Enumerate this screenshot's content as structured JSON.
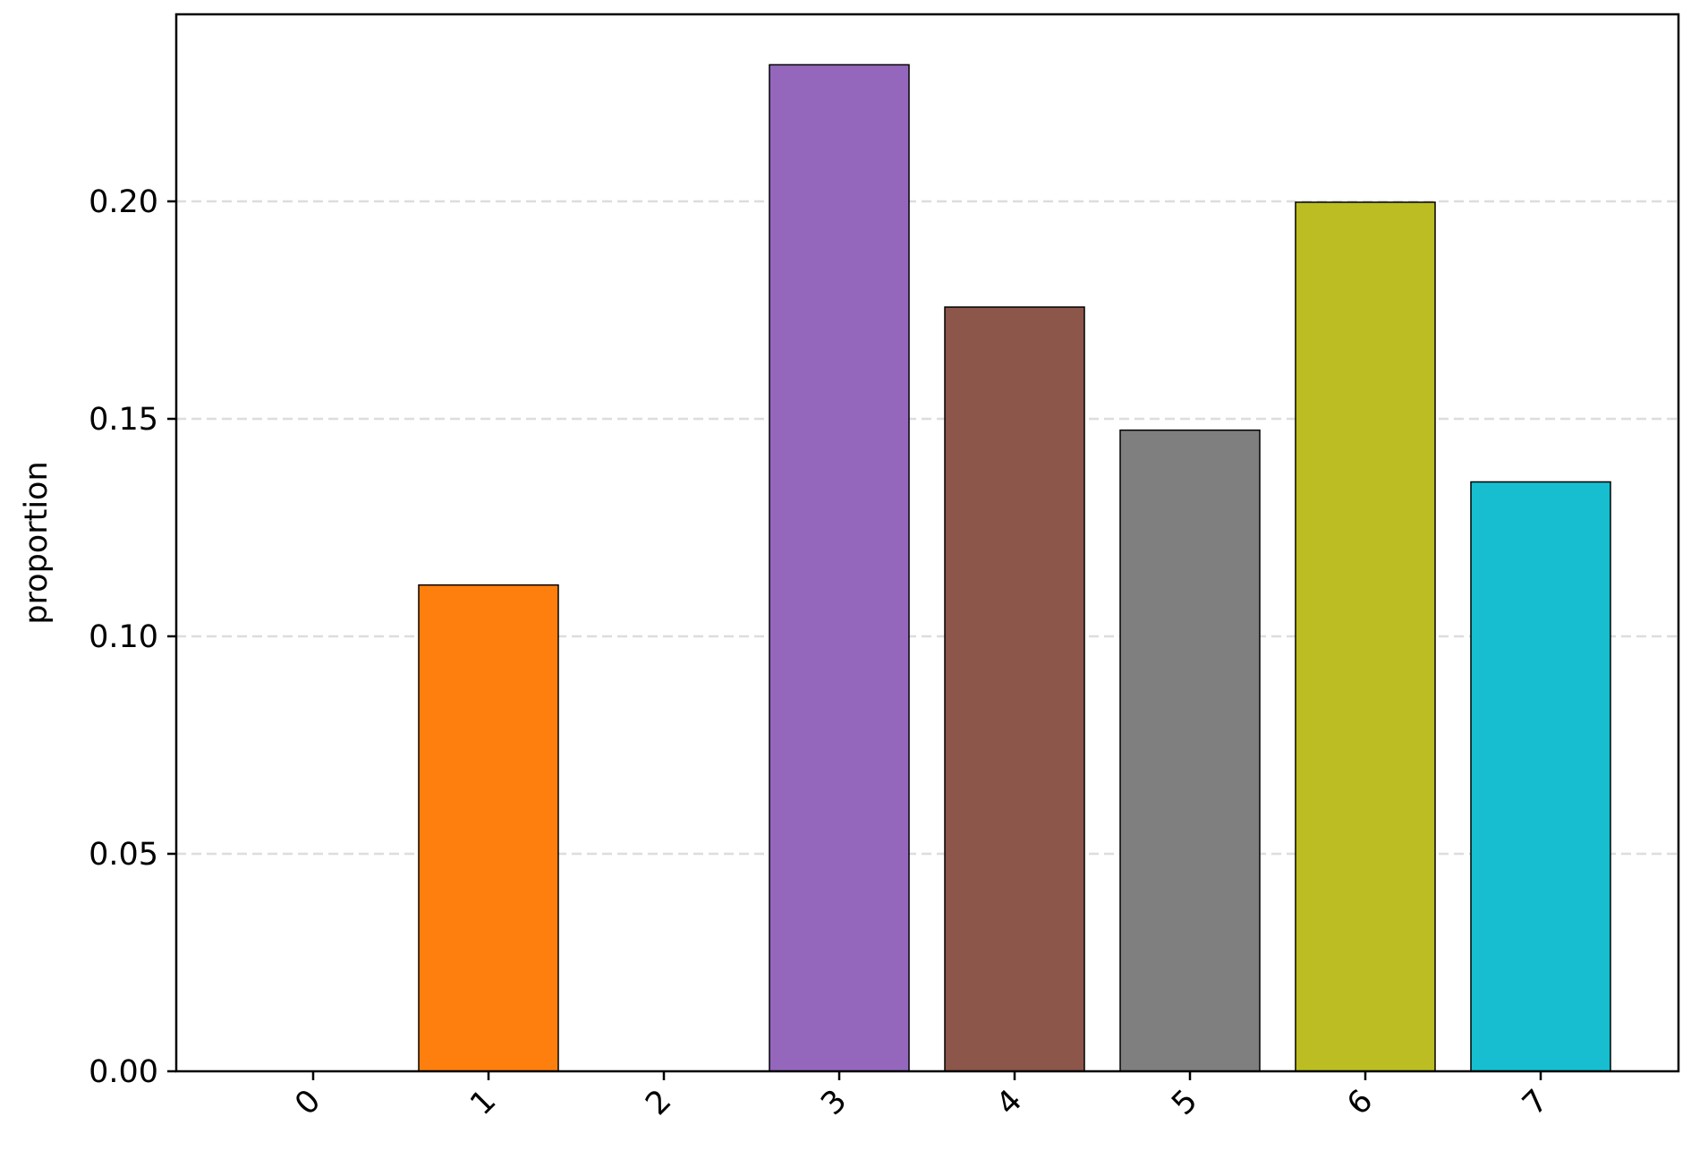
{
  "chart_data": {
    "type": "bar",
    "title": "",
    "xlabel": "",
    "ylabel": "proportion",
    "categories": [
      "0",
      "1",
      "2",
      "3",
      "4",
      "5",
      "6",
      "7"
    ],
    "values": [
      0.0,
      0.1118,
      0.0,
      0.2314,
      0.1757,
      0.1474,
      0.1998,
      0.1355
    ],
    "ylim": [
      0.0,
      0.243
    ],
    "yticks": [
      0.0,
      0.05,
      0.1,
      0.15,
      0.2
    ],
    "ytick_labels": [
      "0.00",
      "0.05",
      "0.10",
      "0.15",
      "0.20"
    ],
    "grid": "y dashed",
    "legend": "none",
    "x_tick_rotation": "45",
    "bar_colors": [
      "#1f77b4",
      "#ff7f0e",
      "#2ca02c",
      "#9467bd",
      "#8c564b",
      "#7f7f7f",
      "#bcbd22",
      "#17becf"
    ],
    "bar_edge_color": "#000000",
    "grid_color": "#dddddd"
  }
}
